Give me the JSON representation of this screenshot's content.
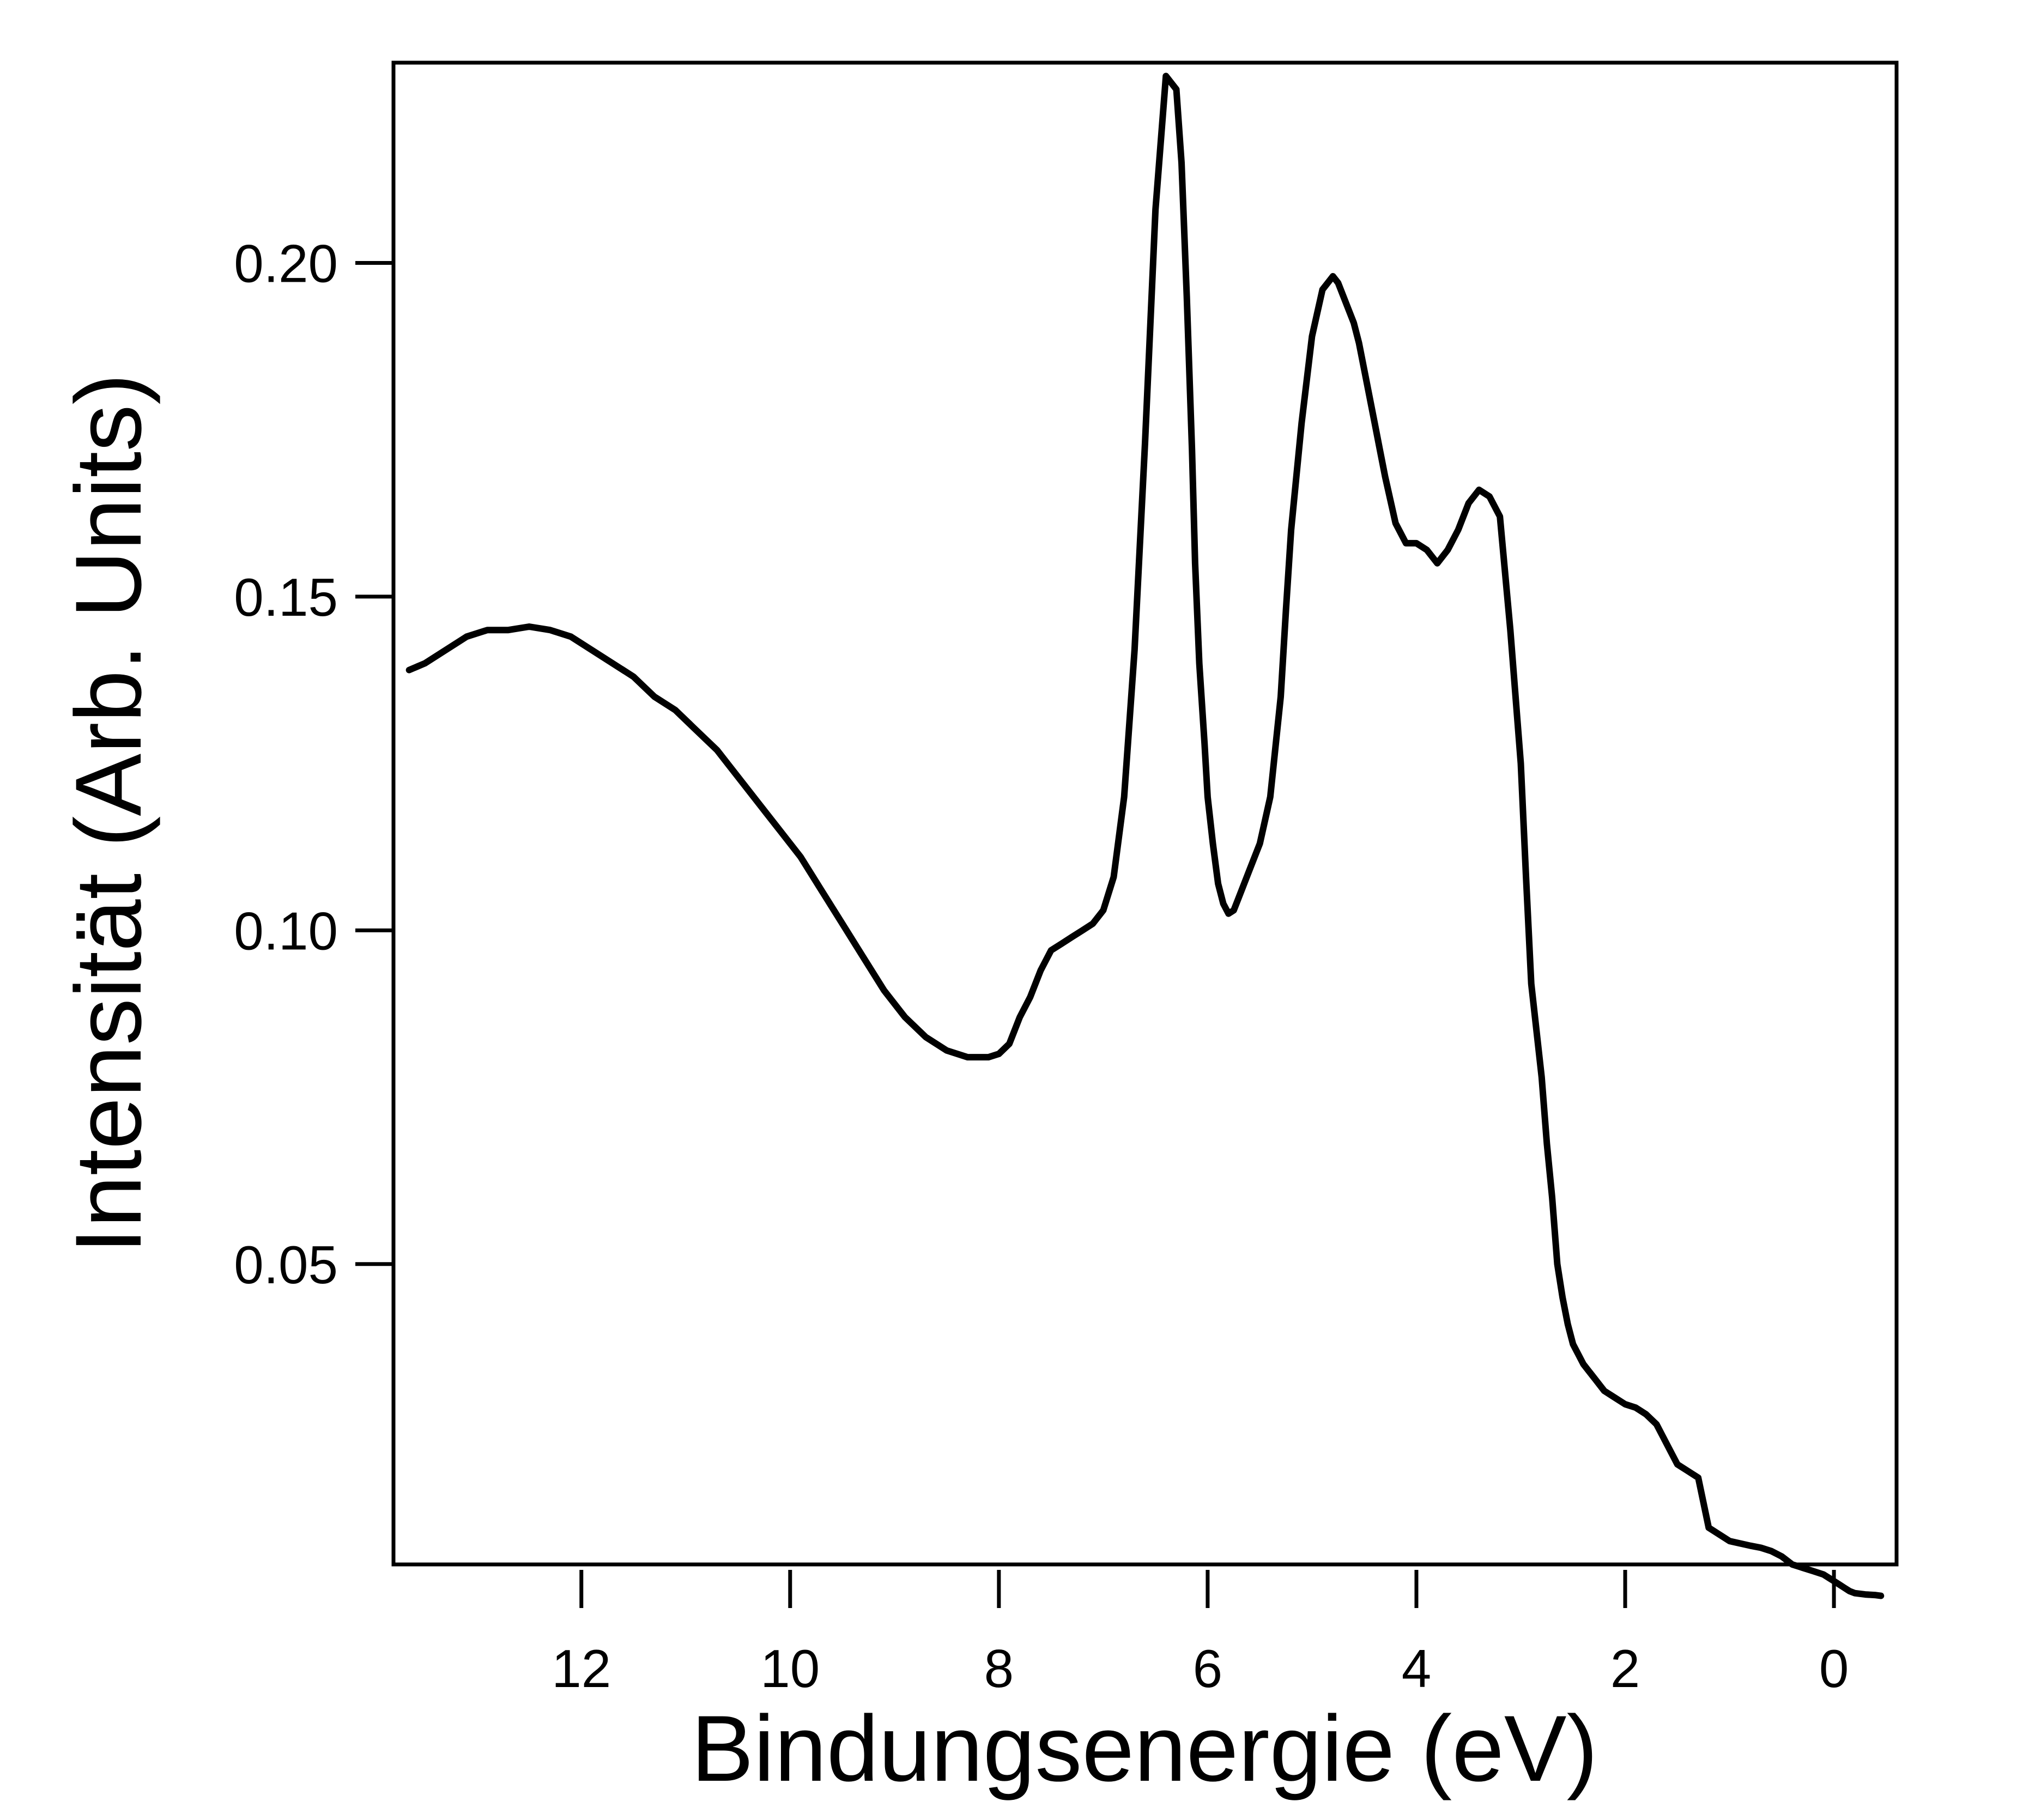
{
  "chart_data": {
    "type": "line",
    "title": "",
    "xlabel": "Bindungsenergie (eV)",
    "ylabel": "Intensität (Arb. Units)",
    "xlim": [
      13.8,
      -0.6
    ],
    "ylim": [
      0.005,
      0.23
    ],
    "x_reversed": true,
    "grid": false,
    "legend": "none",
    "line_color": "#000000",
    "x_ticks": [
      {
        "value": 12,
        "label": "12"
      },
      {
        "value": 10,
        "label": "10"
      },
      {
        "value": 8,
        "label": "8"
      },
      {
        "value": 6,
        "label": "6"
      },
      {
        "value": 4,
        "label": "4"
      },
      {
        "value": 2,
        "label": "2"
      },
      {
        "value": 0,
        "label": "0"
      }
    ],
    "y_ticks": [
      {
        "value": 0.05,
        "label": "0.05"
      },
      {
        "value": 0.1,
        "label": "0.10"
      },
      {
        "value": 0.15,
        "label": "0.15"
      },
      {
        "value": 0.2,
        "label": "0.20"
      }
    ],
    "series": [
      {
        "x": [
          13.65,
          13.5,
          13.3,
          13.1,
          12.9,
          12.7,
          12.5,
          12.3,
          12.1,
          11.9,
          11.7,
          11.5,
          11.3,
          11.1,
          10.9,
          10.7,
          10.5,
          10.3,
          10.1,
          9.9,
          9.7,
          9.5,
          9.3,
          9.1,
          8.9,
          8.7,
          8.5,
          8.3,
          8.1,
          8.0,
          7.9,
          7.8,
          7.7,
          7.6,
          7.5,
          7.4,
          7.3,
          7.2,
          7.1,
          7.0,
          6.9,
          6.8,
          6.7,
          6.6,
          6.5,
          6.4,
          6.3,
          6.25,
          6.2,
          6.15,
          6.12,
          6.08,
          6.03,
          6.0,
          5.95,
          5.9,
          5.85,
          5.8,
          5.75,
          5.7,
          5.6,
          5.5,
          5.4,
          5.3,
          5.25,
          5.2,
          5.1,
          5.0,
          4.9,
          4.8,
          4.75,
          4.7,
          4.65,
          4.6,
          4.55,
          4.5,
          4.45,
          4.4,
          4.35,
          4.3,
          4.2,
          4.1,
          4.0,
          3.9,
          3.8,
          3.7,
          3.6,
          3.5,
          3.4,
          3.3,
          3.2,
          3.1,
          3.0,
          2.95,
          2.9,
          2.8,
          2.75,
          2.7,
          2.65,
          2.6,
          2.55,
          2.5,
          2.4,
          2.3,
          2.2,
          2.1,
          2.0,
          1.9,
          1.85,
          1.8,
          1.7,
          1.6,
          1.5,
          1.4,
          1.3,
          1.2,
          1.0,
          0.8,
          0.7,
          0.6,
          0.5,
          0.4,
          0.3,
          0.2,
          0.1,
          0.05,
          0.0,
          -0.05,
          -0.1,
          -0.15,
          -0.2,
          -0.3,
          -0.4,
          -0.45
        ],
        "y": [
          0.139,
          0.14,
          0.142,
          0.144,
          0.145,
          0.145,
          0.1455,
          0.145,
          0.144,
          0.142,
          0.14,
          0.138,
          0.135,
          0.133,
          0.13,
          0.127,
          0.123,
          0.119,
          0.115,
          0.111,
          0.106,
          0.101,
          0.096,
          0.091,
          0.087,
          0.084,
          0.082,
          0.081,
          0.081,
          0.0815,
          0.083,
          0.087,
          0.09,
          0.094,
          0.097,
          0.098,
          0.099,
          0.1,
          0.101,
          0.103,
          0.108,
          0.12,
          0.142,
          0.173,
          0.208,
          0.228,
          0.226,
          0.215,
          0.195,
          0.172,
          0.155,
          0.14,
          0.128,
          0.12,
          0.113,
          0.107,
          0.104,
          0.1025,
          0.103,
          0.105,
          0.109,
          0.113,
          0.12,
          0.135,
          0.148,
          0.16,
          0.176,
          0.189,
          0.196,
          0.198,
          0.197,
          0.195,
          0.193,
          0.191,
          0.188,
          0.184,
          0.18,
          0.176,
          0.172,
          0.168,
          0.161,
          0.158,
          0.158,
          0.157,
          0.155,
          0.157,
          0.16,
          0.164,
          0.166,
          0.165,
          0.162,
          0.145,
          0.125,
          0.108,
          0.092,
          0.078,
          0.068,
          0.06,
          0.05,
          0.045,
          0.041,
          0.038,
          0.035,
          0.033,
          0.031,
          0.03,
          0.029,
          0.0285,
          0.028,
          0.0275,
          0.026,
          0.023,
          0.02,
          0.019,
          0.018,
          0.0105,
          0.0085,
          0.0078,
          0.0075,
          0.007,
          0.0062,
          0.005,
          0.0045,
          0.004,
          0.0035,
          0.003,
          0.0025,
          0.002,
          0.0015,
          0.001,
          0.0007,
          0.0005,
          0.0004,
          0.0003
        ],
        "name": ""
      }
    ]
  }
}
